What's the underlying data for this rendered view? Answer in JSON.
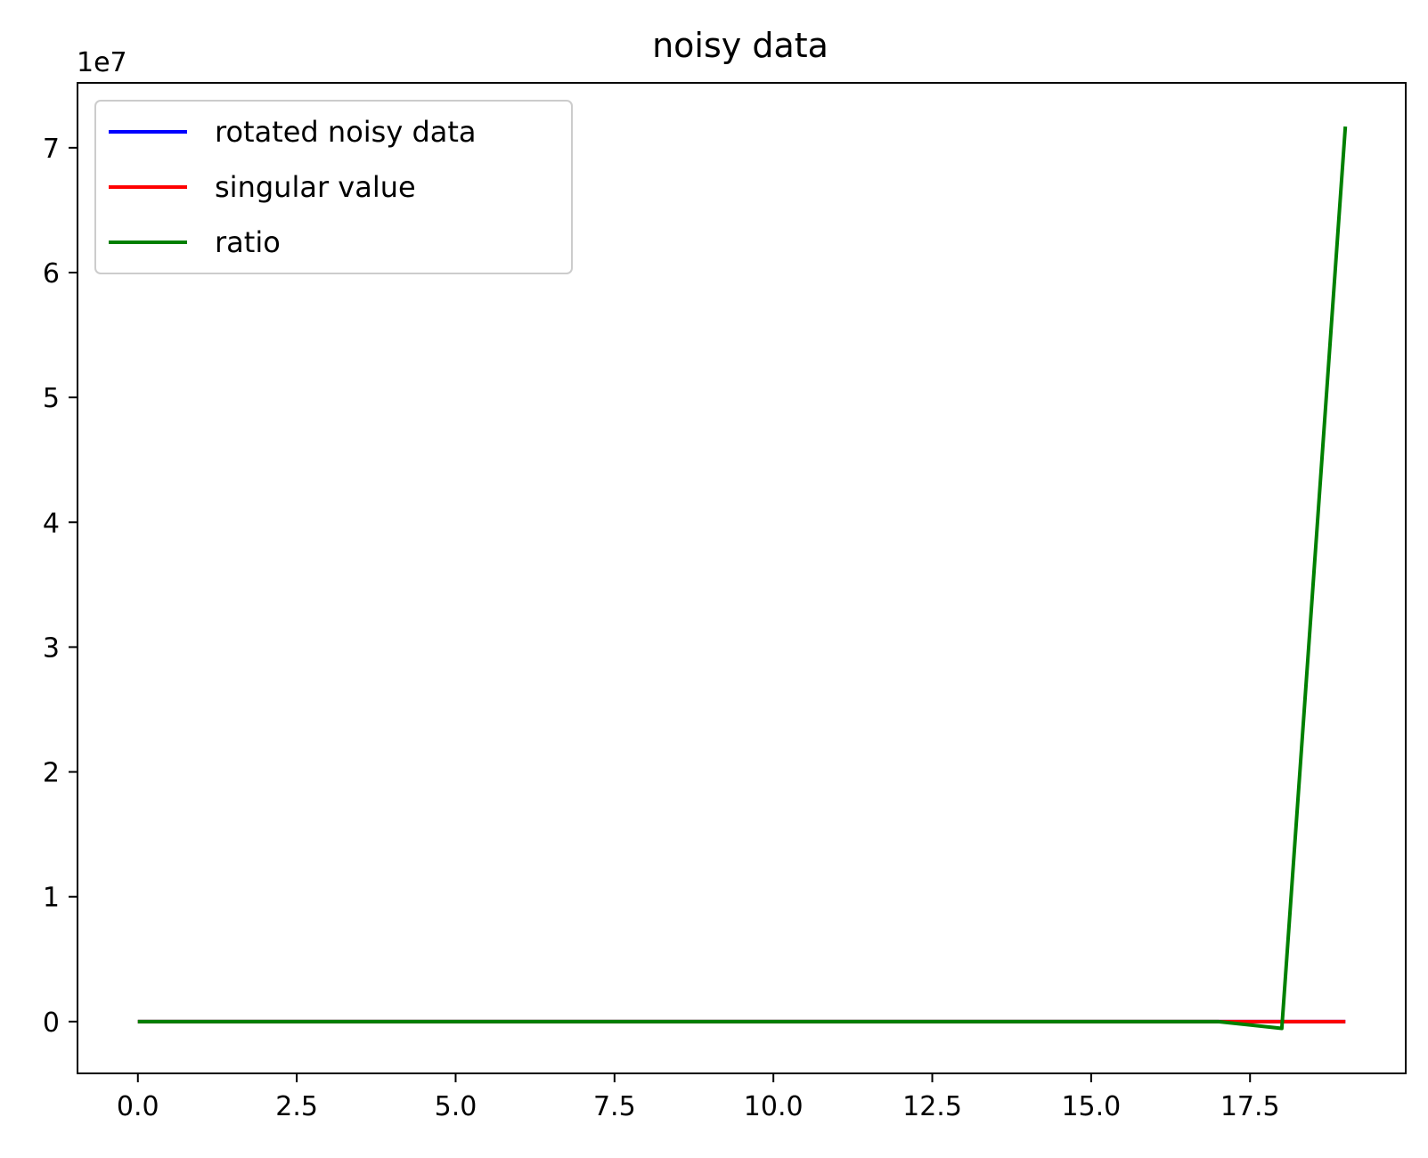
{
  "chart_data": {
    "type": "line",
    "title": "noisy data",
    "xlabel": "",
    "ylabel": "",
    "y_offset_label": "1e7",
    "y_scale": 10000000,
    "xlim": [
      -0.95,
      19.95
    ],
    "ylim": [
      -4150000,
      75200000
    ],
    "x_ticks": [
      0.0,
      2.5,
      5.0,
      7.5,
      10.0,
      12.5,
      15.0,
      17.5
    ],
    "x_tick_labels": [
      "0.0",
      "2.5",
      "5.0",
      "7.5",
      "10.0",
      "12.5",
      "15.0",
      "17.5"
    ],
    "y_ticks": [
      0,
      10000000,
      20000000,
      30000000,
      40000000,
      50000000,
      60000000,
      70000000
    ],
    "y_tick_labels": [
      "0",
      "1",
      "2",
      "3",
      "4",
      "5",
      "6",
      "7"
    ],
    "grid": false,
    "legend_position": "upper-left",
    "x": [
      0,
      1,
      2,
      3,
      4,
      5,
      6,
      7,
      8,
      9,
      10,
      11,
      12,
      13,
      14,
      15,
      16,
      17,
      18,
      19
    ],
    "series": [
      {
        "name": "rotated noisy data",
        "color": "#0000ff",
        "values": [
          0,
          0,
          0,
          0,
          0,
          0,
          0,
          0,
          0,
          0,
          0,
          0,
          0,
          0,
          0,
          0,
          0,
          0,
          0,
          0
        ]
      },
      {
        "name": "singular value",
        "color": "#ff0000",
        "values": [
          0,
          0,
          0,
          0,
          0,
          0,
          0,
          0,
          0,
          0,
          0,
          0,
          0,
          0,
          0,
          0,
          0,
          0,
          0,
          0
        ]
      },
      {
        "name": "ratio",
        "color": "#008000",
        "values": [
          0,
          0,
          0,
          0,
          0,
          0,
          0,
          0,
          0,
          0,
          0,
          0,
          0,
          0,
          0,
          0,
          0,
          0,
          -550000,
          71700000
        ]
      }
    ]
  }
}
